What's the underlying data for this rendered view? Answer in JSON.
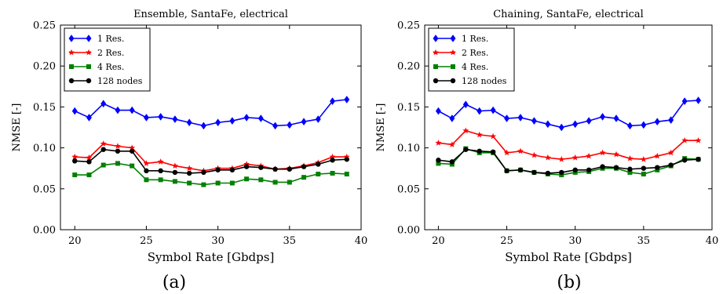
{
  "chart_data": [
    {
      "type": "line",
      "panel_label": "(a)",
      "title": "Ensemble, SantaFe, electrical",
      "xlabel": "Symbol Rate [Gbdps]",
      "ylabel": "NMSE [-]",
      "xlim": [
        19,
        40
      ],
      "ylim": [
        0,
        0.25
      ],
      "xticks": [
        "20",
        "25",
        "30",
        "35",
        "40"
      ],
      "yticks": [
        "0.00",
        "0.05",
        "0.10",
        "0.15",
        "0.20",
        "0.25"
      ],
      "legend_position": "top-left",
      "x": [
        20,
        21,
        22,
        23,
        24,
        25,
        26,
        27,
        28,
        29,
        30,
        31,
        32,
        33,
        34,
        35,
        36,
        37,
        38,
        39
      ],
      "series": [
        {
          "name": "1 Res.",
          "color": "#0000ff",
          "marker": "diamond",
          "values": [
            0.145,
            0.137,
            0.154,
            0.146,
            0.146,
            0.137,
            0.138,
            0.135,
            0.131,
            0.127,
            0.131,
            0.133,
            0.137,
            0.136,
            0.127,
            0.128,
            0.132,
            0.135,
            0.157,
            0.159
          ]
        },
        {
          "name": "2 Res.",
          "color": "#ff0000",
          "marker": "star",
          "values": [
            0.089,
            0.088,
            0.105,
            0.102,
            0.1,
            0.081,
            0.083,
            0.078,
            0.075,
            0.072,
            0.075,
            0.075,
            0.08,
            0.078,
            0.074,
            0.075,
            0.078,
            0.082,
            0.089,
            0.089
          ]
        },
        {
          "name": "4 Res.",
          "color": "#008000",
          "marker": "square",
          "values": [
            0.067,
            0.067,
            0.079,
            0.081,
            0.078,
            0.061,
            0.061,
            0.059,
            0.057,
            0.055,
            0.057,
            0.057,
            0.062,
            0.061,
            0.058,
            0.058,
            0.064,
            0.068,
            0.069,
            0.068
          ]
        },
        {
          "name": "128 nodes",
          "color": "#000000",
          "marker": "circle",
          "values": [
            0.084,
            0.083,
            0.098,
            0.096,
            0.096,
            0.072,
            0.072,
            0.07,
            0.069,
            0.07,
            0.073,
            0.073,
            0.077,
            0.076,
            0.074,
            0.074,
            0.077,
            0.08,
            0.085,
            0.086
          ]
        }
      ]
    },
    {
      "type": "line",
      "panel_label": "(b)",
      "title": "Chaining, SantaFe, electrical",
      "xlabel": "Symbol Rate [Gbdps]",
      "ylabel": "NMSE [-]",
      "xlim": [
        19,
        40
      ],
      "ylim": [
        0,
        0.25
      ],
      "xticks": [
        "20",
        "25",
        "30",
        "35",
        "40"
      ],
      "yticks": [
        "0.00",
        "0.05",
        "0.10",
        "0.15",
        "0.20",
        "0.25"
      ],
      "legend_position": "top-left",
      "x": [
        20,
        21,
        22,
        23,
        24,
        25,
        26,
        27,
        28,
        29,
        30,
        31,
        32,
        33,
        34,
        35,
        36,
        37,
        38,
        39
      ],
      "series": [
        {
          "name": "1 Res.",
          "color": "#0000ff",
          "marker": "diamond",
          "values": [
            0.145,
            0.136,
            0.153,
            0.145,
            0.146,
            0.136,
            0.137,
            0.133,
            0.129,
            0.125,
            0.129,
            0.133,
            0.138,
            0.136,
            0.127,
            0.128,
            0.132,
            0.134,
            0.157,
            0.158
          ]
        },
        {
          "name": "2 Res.",
          "color": "#ff0000",
          "marker": "star",
          "values": [
            0.106,
            0.104,
            0.121,
            0.116,
            0.114,
            0.094,
            0.096,
            0.091,
            0.088,
            0.086,
            0.088,
            0.09,
            0.094,
            0.092,
            0.087,
            0.086,
            0.09,
            0.094,
            0.109,
            0.109
          ]
        },
        {
          "name": "4 Res.",
          "color": "#008000",
          "marker": "square",
          "values": [
            0.081,
            0.08,
            0.099,
            0.094,
            0.094,
            0.072,
            0.073,
            0.07,
            0.068,
            0.067,
            0.07,
            0.071,
            0.075,
            0.075,
            0.07,
            0.068,
            0.073,
            0.078,
            0.087,
            0.086
          ]
        },
        {
          "name": "128 nodes",
          "color": "#000000",
          "marker": "circle",
          "values": [
            0.085,
            0.083,
            0.098,
            0.096,
            0.095,
            0.072,
            0.073,
            0.07,
            0.069,
            0.07,
            0.073,
            0.073,
            0.077,
            0.076,
            0.074,
            0.075,
            0.076,
            0.079,
            0.085,
            0.086
          ]
        }
      ]
    }
  ]
}
